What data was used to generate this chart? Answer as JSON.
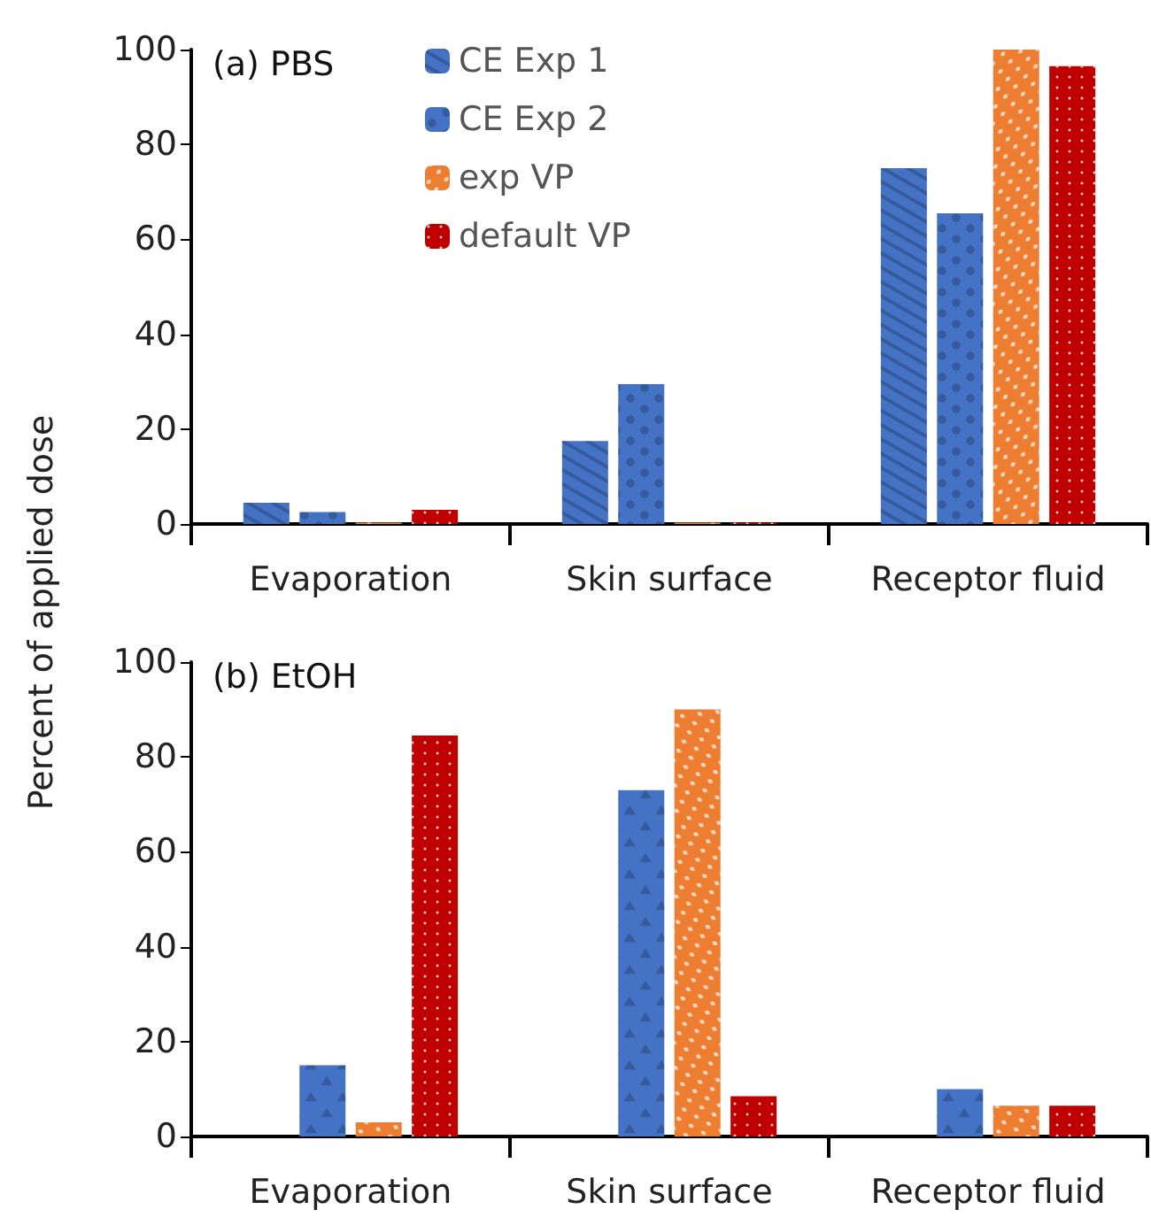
{
  "chart_data": [
    {
      "type": "bar",
      "title": "(a) PBS",
      "categories": [
        "Evaporation",
        "Skin surface",
        "Receptor fluid"
      ],
      "series": [
        {
          "name": "CE Exp 1",
          "color": "#4472c4",
          "values": [
            4.5,
            17.5,
            75
          ]
        },
        {
          "name": "CE Exp 2",
          "color": "#4472c4",
          "values": [
            2.5,
            29.5,
            65.5
          ]
        },
        {
          "name": "exp VP",
          "color": "#ed7d31",
          "values": [
            0.3,
            0.3,
            100
          ]
        },
        {
          "name": "default VP",
          "color": "#c00000",
          "values": [
            3,
            0.3,
            96.5
          ]
        }
      ],
      "ylim": [
        0,
        100
      ],
      "yticks": [
        0,
        20,
        40,
        60,
        80,
        100
      ],
      "grid": false,
      "legend": "top"
    },
    {
      "type": "bar",
      "title": "(b) EtOH",
      "ylabel": "Percent of applied dose",
      "categories": [
        "Evaporation",
        "Skin surface",
        "Receptor fluid"
      ],
      "series": [
        {
          "color": "#4472c4",
          "values": [
            null,
            null,
            null
          ]
        },
        {
          "color": "#4472c4",
          "values": [
            15,
            73,
            10
          ]
        },
        {
          "color": "#ed7d31",
          "values": [
            3,
            90,
            6.5
          ]
        },
        {
          "color": "#c00000",
          "values": [
            84.5,
            8.5,
            6.5
          ]
        }
      ],
      "ylim": [
        0,
        100
      ],
      "yticks": [
        0,
        20,
        40,
        60,
        80,
        100
      ],
      "grid": false,
      "legend": false
    }
  ]
}
